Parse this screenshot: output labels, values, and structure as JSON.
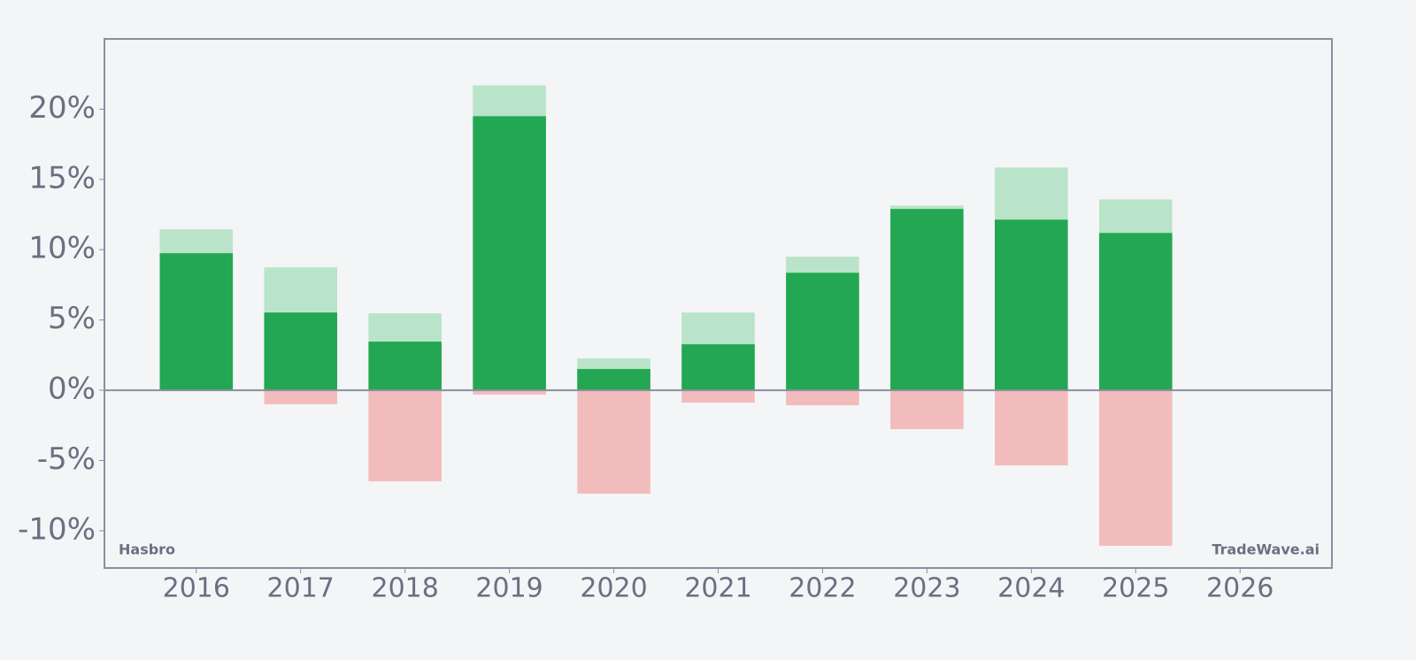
{
  "chart_data": {
    "type": "bar",
    "annotations": [
      "Hasbro",
      "TradeWave.ai"
    ],
    "x": [
      2016,
      2017,
      2018,
      2019,
      2020,
      2021,
      2022,
      2023,
      2024,
      2025,
      2026
    ],
    "xlim": [
      2015.12,
      2026.88
    ],
    "xticks": [
      2016,
      2017,
      2018,
      2019,
      2020,
      2021,
      2022,
      2023,
      2024,
      2025,
      2026
    ],
    "ylim": [
      -12.65,
      25
    ],
    "yticks": [
      {
        "value": -10,
        "label": "-10%"
      },
      {
        "value": -5,
        "label": "-5%"
      },
      {
        "value": 0,
        "label": "0%"
      },
      {
        "value": 5,
        "label": "5%"
      },
      {
        "value": 10,
        "label": "10%"
      },
      {
        "value": 15,
        "label": "15%"
      },
      {
        "value": 20,
        "label": "20%"
      }
    ],
    "series": [
      {
        "color": "#b9e4c9",
        "values": [
          11.45,
          8.74,
          5.47,
          21.7,
          2.26,
          5.53,
          9.5,
          13.14,
          15.85,
          13.58,
          null
        ]
      },
      {
        "color": "#23a752",
        "values": [
          9.75,
          5.53,
          3.46,
          19.5,
          1.51,
          3.27,
          8.36,
          12.9,
          12.14,
          11.19,
          null
        ]
      },
      {
        "color": "#f3bcbc",
        "values": [
          -0.06,
          -1.0,
          -6.48,
          -0.31,
          -7.36,
          -0.88,
          -1.07,
          -2.77,
          -5.35,
          -11.07,
          null
        ]
      }
    ]
  }
}
